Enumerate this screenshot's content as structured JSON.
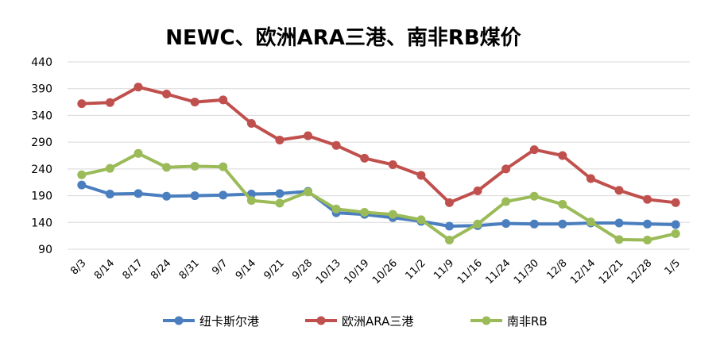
{
  "chart_data": {
    "type": "line",
    "title": "NEWC、欧洲ARA三港、南非RB煤价",
    "xlabel": "",
    "ylabel": "",
    "ylim": [
      90,
      440
    ],
    "yticks": [
      440,
      390,
      340,
      290,
      240,
      190,
      140,
      90
    ],
    "grid": true,
    "legend_position": "bottom",
    "categories": [
      "8/3",
      "8/14",
      "8/17",
      "8/24",
      "8/31",
      "9/7",
      "9/14",
      "9/21",
      "9/28",
      "10/13",
      "10/19",
      "10/26",
      "11/2",
      "11/9",
      "11/16",
      "11/24",
      "11/30",
      "12/8",
      "12/14",
      "12/21",
      "12/28",
      "1/5"
    ],
    "series": [
      {
        "name": "纽卡斯尔港",
        "color": "#4a7ebf",
        "values": [
          210,
          193,
          194,
          189,
          190,
          191,
          193,
          194,
          198,
          158,
          155,
          149,
          142,
          133,
          134,
          138,
          137,
          137,
          139,
          139,
          137,
          136
        ]
      },
      {
        "name": "欧洲ARA三港",
        "color": "#c0504d",
        "values": [
          362,
          364,
          393,
          380,
          365,
          369,
          325,
          294,
          302,
          284,
          260,
          248,
          228,
          177,
          199,
          240,
          276,
          265,
          222,
          200,
          183,
          177
        ]
      },
      {
        "name": "南非RB",
        "color": "#9bbb59",
        "values": [
          229,
          241,
          269,
          243,
          245,
          244,
          181,
          176,
          197,
          165,
          159,
          155,
          145,
          107,
          137,
          179,
          189,
          174,
          141,
          108,
          107,
          119
        ]
      }
    ]
  }
}
